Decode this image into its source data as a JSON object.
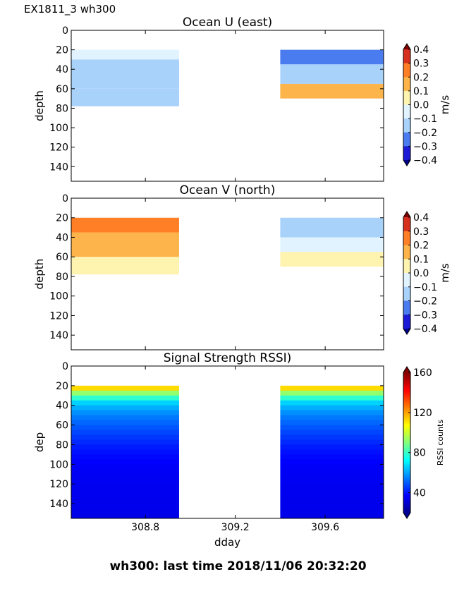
{
  "figure_title": "EX1811_3 wh300",
  "footer": "wh300: last time 2018/11/06 20:32:20",
  "chart_data": [
    {
      "type": "heatmap",
      "title": "Ocean U (east)",
      "ylabel": "depth",
      "xlabel": "",
      "y_ticks": [
        0,
        20,
        40,
        60,
        80,
        100,
        120,
        140
      ],
      "ylim": [
        155,
        0
      ],
      "x_ticks": [
        308.8,
        309.2,
        309.6
      ],
      "x_tick_labels": [],
      "xlim": [
        308.47,
        309.86
      ],
      "colorbar": {
        "label": "m/s",
        "ticks": [
          0.4,
          0.3,
          0.2,
          0.1,
          0.0,
          -0.1,
          -0.2,
          -0.3,
          -0.4
        ],
        "tick_labels": [
          "0.4",
          "0.3",
          "0.2",
          "0.1",
          "0.0",
          "−0.1",
          "−0.2",
          "−0.3",
          "−0.4"
        ],
        "colors": [
          "#7f0000",
          "#d7301f",
          "#ff7f27",
          "#fdb44b",
          "#fff3b0",
          "#e0f3ff",
          "#a9d2fb",
          "#4a7bef",
          "#1c1ad6",
          "#00008b"
        ]
      },
      "segments": [
        {
          "x_start": 308.47,
          "x_end": 308.95,
          "depth_start": 20,
          "depth_end": 78,
          "regions": [
            {
              "depth": [
                20,
                30
              ],
              "value": -0.05
            },
            {
              "depth": [
                30,
                60
              ],
              "value": -0.12
            },
            {
              "depth": [
                60,
                78
              ],
              "value": -0.1
            }
          ]
        },
        {
          "x_start": 309.4,
          "x_end": 309.86,
          "depth_start": 20,
          "depth_end": 70,
          "regions": [
            {
              "depth": [
                20,
                35
              ],
              "value": -0.2
            },
            {
              "depth": [
                35,
                55
              ],
              "value": -0.1
            },
            {
              "depth": [
                55,
                70
              ],
              "value": 0.15
            }
          ]
        }
      ]
    },
    {
      "type": "heatmap",
      "title": "Ocean V (north)",
      "ylabel": "depth",
      "xlabel": "",
      "y_ticks": [
        0,
        20,
        40,
        60,
        80,
        100,
        120,
        140
      ],
      "ylim": [
        155,
        0
      ],
      "x_ticks": [
        308.8,
        309.2,
        309.6
      ],
      "x_tick_labels": [],
      "xlim": [
        308.47,
        309.86
      ],
      "colorbar": {
        "label": "m/s",
        "ticks": [
          0.4,
          0.3,
          0.2,
          0.1,
          0.0,
          -0.1,
          -0.2,
          -0.3,
          -0.4
        ],
        "tick_labels": [
          "0.4",
          "0.3",
          "0.2",
          "0.1",
          "0.0",
          "−0.1",
          "−0.2",
          "−0.3",
          "−0.4"
        ],
        "colors": [
          "#7f0000",
          "#d7301f",
          "#ff7f27",
          "#fdb44b",
          "#fff3b0",
          "#e0f3ff",
          "#a9d2fb",
          "#4a7bef",
          "#1c1ad6",
          "#00008b"
        ]
      },
      "segments": [
        {
          "x_start": 308.47,
          "x_end": 308.95,
          "depth_start": 20,
          "depth_end": 78,
          "regions": [
            {
              "depth": [
                20,
                35
              ],
              "value": 0.25
            },
            {
              "depth": [
                35,
                60
              ],
              "value": 0.15
            },
            {
              "depth": [
                60,
                78
              ],
              "value": 0.05
            }
          ]
        },
        {
          "x_start": 309.4,
          "x_end": 309.86,
          "depth_start": 20,
          "depth_end": 70,
          "regions": [
            {
              "depth": [
                20,
                40
              ],
              "value": -0.1
            },
            {
              "depth": [
                40,
                55
              ],
              "value": -0.05
            },
            {
              "depth": [
                55,
                70
              ],
              "value": 0.05
            }
          ]
        }
      ]
    },
    {
      "type": "heatmap",
      "title": "Signal Strength RSSI)",
      "ylabel": "dep",
      "xlabel": "dday",
      "y_ticks": [
        0,
        20,
        40,
        60,
        80,
        100,
        120,
        140
      ],
      "ylim": [
        155,
        0
      ],
      "x_ticks": [
        308.8,
        309.2,
        309.6
      ],
      "x_tick_labels": [
        "308.8",
        "309.2",
        "309.6"
      ],
      "xlim": [
        308.47,
        309.86
      ],
      "colorbar": {
        "label": "RSSI counts",
        "ticks": [
          160,
          120,
          80,
          40
        ],
        "tick_labels": [
          "160",
          "120",
          "80",
          "40"
        ],
        "range": [
          20,
          160
        ],
        "colors": [
          "#00008f",
          "#0000ff",
          "#0080ff",
          "#00ffff",
          "#80ff80",
          "#ffff00",
          "#ff8000",
          "#ff0000",
          "#800000"
        ]
      },
      "segments": [
        {
          "x_start": 308.47,
          "x_end": 308.95,
          "depth_start": 20,
          "depth_end": 155
        },
        {
          "x_start": 309.4,
          "x_end": 309.86,
          "depth_start": 20,
          "depth_end": 155
        }
      ],
      "profile": [
        {
          "depth": 20,
          "value": 125
        },
        {
          "depth": 25,
          "value": 100
        },
        {
          "depth": 30,
          "value": 85
        },
        {
          "depth": 38,
          "value": 65
        },
        {
          "depth": 50,
          "value": 55
        },
        {
          "depth": 65,
          "value": 48
        },
        {
          "depth": 85,
          "value": 40
        },
        {
          "depth": 105,
          "value": 36
        },
        {
          "depth": 155,
          "value": 34
        }
      ]
    }
  ]
}
